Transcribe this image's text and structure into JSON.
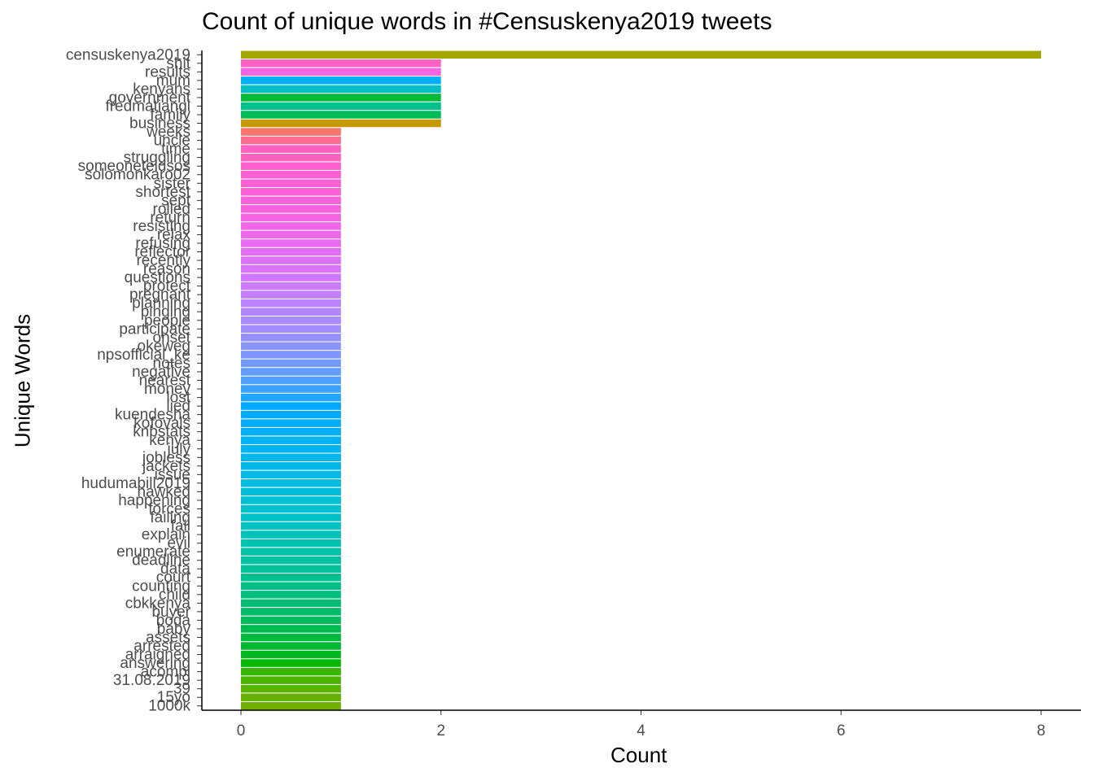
{
  "chart_data": {
    "type": "bar",
    "orientation": "horizontal",
    "title": "Count of unique words in #Censuskenya2019 tweets",
    "xlabel": "Count",
    "ylabel": "Unique Words",
    "xlim": [
      0,
      8
    ],
    "xticks": [
      0,
      2,
      4,
      6,
      8
    ],
    "grid": false,
    "legend": "none",
    "categories": [
      "censuskenya2019",
      "shit",
      "results",
      "mum",
      "kenyans",
      "government",
      "fredmatiangi",
      "family",
      "business",
      "weeks",
      "uncle",
      "time",
      "struggling",
      "someoneteldsos",
      "solomonkaro02",
      "sister",
      "shortest",
      "sept",
      "rolled",
      "return",
      "resisting",
      "relax",
      "refusing",
      "reflector",
      "recently",
      "reason",
      "questions",
      "protect",
      "pregnant",
      "planning",
      "pinging",
      "people",
      "participate",
      "onset",
      "okeweg",
      "npsofficial_ke",
      "notes",
      "negative",
      "nearest",
      "money",
      "lost",
      "lied",
      "kuendesha",
      "kofovals",
      "knbstats",
      "kenya",
      "july",
      "jobless",
      "jackets",
      "issue",
      "hudumabill2019",
      "hawked",
      "happening",
      "forces",
      "failing",
      "fail",
      "explain",
      "evil",
      "enumerate",
      "deadline",
      "data",
      "court",
      "counting",
      "child",
      "cbkkenya",
      "buyer",
      "boda",
      "baby",
      "assets",
      "arrested",
      "arraigned",
      "answering",
      "acompi",
      "31.08.2019",
      "39",
      "15yo",
      "1000k"
    ],
    "values": [
      8,
      2,
      2,
      2,
      2,
      2,
      2,
      2,
      2,
      1,
      1,
      1,
      1,
      1,
      1,
      1,
      1,
      1,
      1,
      1,
      1,
      1,
      1,
      1,
      1,
      1,
      1,
      1,
      1,
      1,
      1,
      1,
      1,
      1,
      1,
      1,
      1,
      1,
      1,
      1,
      1,
      1,
      1,
      1,
      1,
      1,
      1,
      1,
      1,
      1,
      1,
      1,
      1,
      1,
      1,
      1,
      1,
      1,
      1,
      1,
      1,
      1,
      1,
      1,
      1,
      1,
      1,
      1,
      1,
      1,
      1,
      1,
      1,
      1,
      1,
      1,
      1
    ],
    "colors": [
      "#A3A500",
      "#FF61C3",
      "#F564E3",
      "#00B0F6",
      "#00BFC4",
      "#00BA38",
      "#00C08B",
      "#00BC56",
      "#C49A00",
      "#F8766D",
      "#FF6C92",
      "#FF61C3",
      "#FF62BE",
      "#FE61CF",
      "#FD61D1",
      "#FC61D4",
      "#FB61D7",
      "#F962DB",
      "#F763DE",
      "#F564E3",
      "#F166E8",
      "#ED68ED",
      "#E86BF2",
      "#E36EF6",
      "#DE71F9",
      "#D874FC",
      "#D177FE",
      "#CA7BFF",
      "#C37EFF",
      "#BB82FF",
      "#B385FF",
      "#AB89FF",
      "#A18CFF",
      "#9590FF",
      "#8B93FF",
      "#7F96FF",
      "#7299FF",
      "#649CFF",
      "#519FFF",
      "#3BA2FF",
      "#22A5FF",
      "#00A8FF",
      "#00AAFE",
      "#00ADFA",
      "#00AFF7",
      "#00B2F3",
      "#00B4EF",
      "#00B6EB",
      "#00B8E7",
      "#00BAE3",
      "#00BCDE",
      "#00BED9",
      "#00BFD3",
      "#00C0CD",
      "#00C1C7",
      "#00C2C0",
      "#00C2B9",
      "#00C2B1",
      "#00C2A9",
      "#00C1A1",
      "#00C198",
      "#00C08F",
      "#00BF86",
      "#00BE7D",
      "#00BD73",
      "#00BC68",
      "#00BB5D",
      "#00BA50",
      "#00B941",
      "#00B831",
      "#00B81F",
      "#06B700",
      "#36B600",
      "#4BB400",
      "#5AB300",
      "#66B100",
      "#71AF00"
    ]
  }
}
